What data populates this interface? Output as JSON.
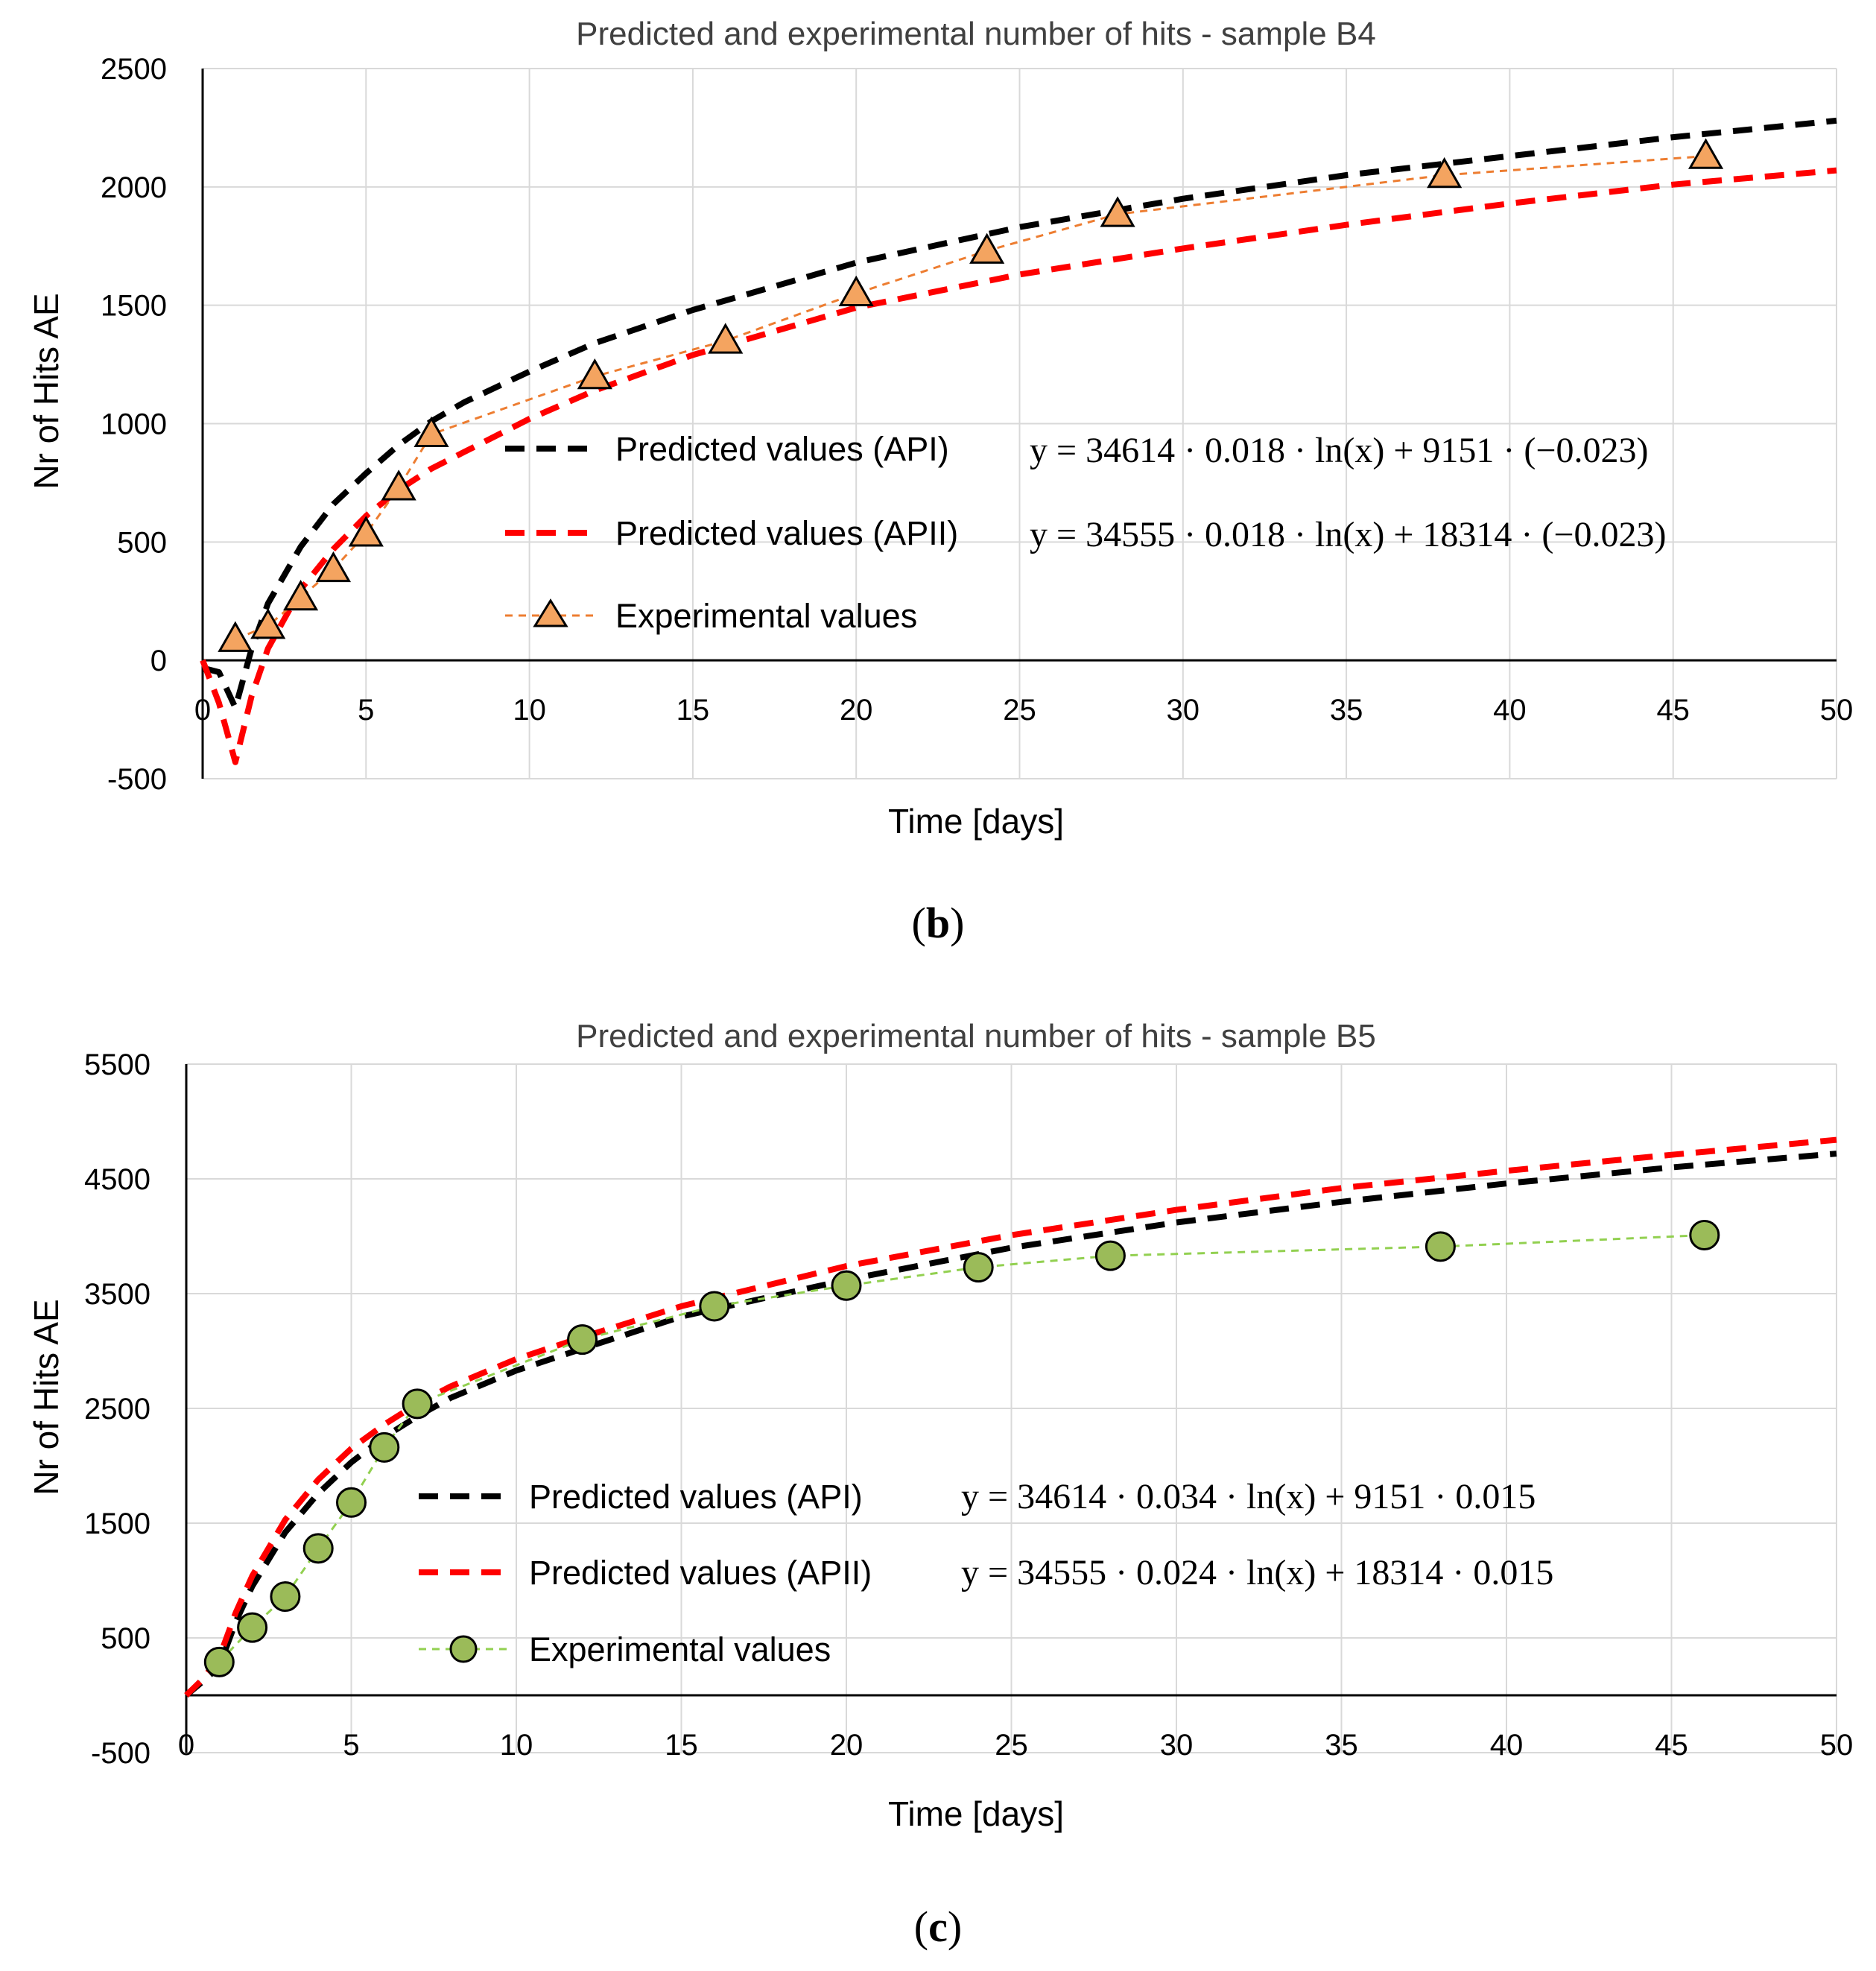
{
  "colors": {
    "api": "#000000",
    "apii": "#ff0000",
    "exp_b": "#ed7d31",
    "marker_b": "#f4a460",
    "exp_c": "#92d050",
    "marker_c": "#9bbb59",
    "grid": "#d9d9d9",
    "axis": "#000000"
  },
  "chart_data": [
    {
      "id": "b",
      "panel_label": "b",
      "type": "line",
      "title": "Predicted and experimental number of hits - sample B4",
      "xlabel": "Time [days]",
      "ylabel": "Nr of Hits AE",
      "xlim": [
        0,
        50
      ],
      "ylim": [
        -500,
        2500
      ],
      "xticks": [
        0,
        5,
        10,
        15,
        20,
        25,
        30,
        35,
        40,
        45,
        50
      ],
      "yticks": [
        -500,
        0,
        500,
        1000,
        1500,
        2000,
        2500
      ],
      "grid": true,
      "legend_position": "center",
      "series": [
        {
          "name": "Predicted values (API)",
          "equation": "y = 34614 · 0.018 · ln(x) + 9151 · (−0.023)",
          "style": "dashed",
          "color": "#000000",
          "x": [
            0.08,
            0.5,
            1,
            1.5,
            2,
            3,
            4,
            5,
            6,
            7,
            8,
            10,
            12,
            15,
            20,
            25,
            30,
            35,
            40,
            45,
            50
          ],
          "y": [
            -35,
            -50,
            -200,
            50,
            240,
            480,
            660,
            790,
            910,
            1010,
            1090,
            1220,
            1340,
            1480,
            1680,
            1830,
            1950,
            2050,
            2130,
            2210,
            2280
          ]
        },
        {
          "name": "Predicted values (APII)",
          "equation": "y = 34555 · 0.018 · ln(x) + 18314 · (−0.023)",
          "style": "dashed",
          "color": "#ff0000",
          "x": [
            0,
            0.5,
            1,
            1.5,
            2,
            3,
            4,
            5,
            6,
            7,
            8,
            10,
            12,
            15,
            20,
            25,
            30,
            35,
            40,
            45,
            50
          ],
          "y": [
            0,
            -180,
            -430,
            -150,
            50,
            300,
            470,
            610,
            720,
            810,
            880,
            1020,
            1140,
            1290,
            1490,
            1630,
            1740,
            1840,
            1930,
            2010,
            2070
          ]
        },
        {
          "name": "Experimental values",
          "style": "dotted-with-triangle-markers",
          "color": "#ed7d31",
          "x": [
            1,
            2,
            3,
            4,
            5,
            6,
            7,
            12,
            16,
            20,
            24,
            28,
            38,
            46
          ],
          "y": [
            90,
            145,
            265,
            385,
            535,
            730,
            955,
            1200,
            1350,
            1550,
            1730,
            1885,
            2050,
            2130
          ]
        }
      ]
    },
    {
      "id": "c",
      "panel_label": "c",
      "type": "line",
      "title": "Predicted and experimental number of hits - sample B5",
      "xlabel": "Time [days]",
      "ylabel": "Nr of Hits AE",
      "xlim": [
        0,
        50
      ],
      "ylim": [
        -500,
        5500
      ],
      "xticks": [
        0,
        5,
        10,
        15,
        20,
        25,
        30,
        35,
        40,
        45,
        50
      ],
      "yticks": [
        -500,
        500,
        1500,
        2500,
        3500,
        4500,
        5500
      ],
      "grid": true,
      "legend_position": "center",
      "series": [
        {
          "name": "Predicted values (API)",
          "equation": "y = 34614 · 0.034 · ln(x) + 9151 · 0.015",
          "style": "dashed",
          "color": "#000000",
          "x": [
            0,
            0.5,
            1,
            1.5,
            2,
            3,
            4,
            5,
            6,
            7,
            8,
            10,
            12,
            15,
            20,
            25,
            30,
            35,
            40,
            45,
            50
          ],
          "y": [
            0,
            120,
            250,
            640,
            950,
            1420,
            1760,
            2030,
            2250,
            2430,
            2590,
            2830,
            3020,
            3300,
            3620,
            3900,
            4120,
            4300,
            4460,
            4600,
            4720
          ]
        },
        {
          "name": "Predicted values (APII)",
          "equation": "y = 34555 · 0.024 · ln(x) + 18314 · 0.015",
          "style": "dashed",
          "color": "#ff0000",
          "x": [
            0,
            0.5,
            1,
            1.5,
            2,
            3,
            4,
            5,
            6,
            7,
            8,
            10,
            12,
            15,
            20,
            25,
            30,
            35,
            40,
            45,
            50
          ],
          "y": [
            0,
            140,
            330,
            720,
            1040,
            1530,
            1880,
            2150,
            2360,
            2540,
            2690,
            2930,
            3120,
            3390,
            3740,
            4010,
            4230,
            4420,
            4570,
            4710,
            4840
          ]
        },
        {
          "name": "Experimental values",
          "style": "dotted-with-circle-markers",
          "color": "#92d050",
          "x": [
            1,
            2,
            3,
            4,
            5,
            6,
            7,
            12,
            16,
            20,
            24,
            28,
            38,
            46
          ],
          "y": [
            290,
            590,
            860,
            1280,
            1680,
            2160,
            2540,
            3100,
            3390,
            3570,
            3730,
            3830,
            3910,
            4010
          ]
        }
      ]
    }
  ]
}
